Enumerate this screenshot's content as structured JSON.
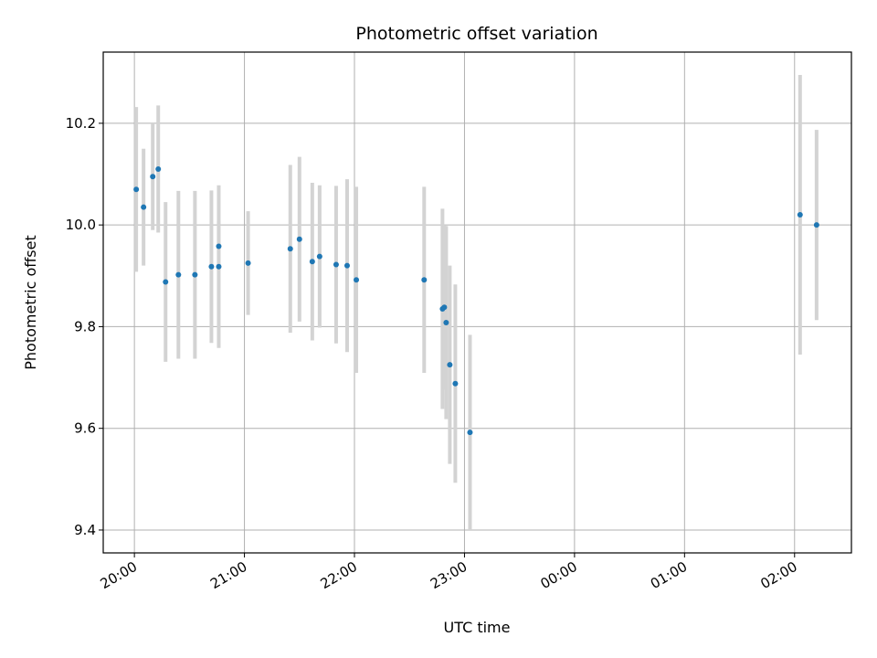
{
  "chart_data": {
    "type": "scatter",
    "title": "Photometric offset variation",
    "xlabel": "UTC time",
    "ylabel": "Photometric offset",
    "x_is_time": true,
    "x_tick_labels": [
      "20:00",
      "21:00",
      "22:00",
      "23:00",
      "00:00",
      "01:00",
      "02:00"
    ],
    "x_tick_times": [
      "20:00",
      "21:00",
      "22:00",
      "23:00",
      "24:00",
      "25:00",
      "26:00"
    ],
    "xlim": [
      "19:43",
      "26:31"
    ],
    "y_ticks": [
      9.4,
      9.6,
      9.8,
      10.0,
      10.2
    ],
    "y_tick_labels": [
      "9.4",
      "9.6",
      "9.8",
      "10.0",
      "10.2"
    ],
    "ylim": [
      9.355,
      10.34
    ],
    "grid": true,
    "colors": {
      "point": "#1f77b4",
      "errorbar": "#d3d3d3",
      "grid": "#b0b0b0"
    },
    "points": [
      {
        "time": "20:01",
        "y": 10.07,
        "err": 0.162
      },
      {
        "time": "20:05",
        "y": 10.035,
        "err": 0.115
      },
      {
        "time": "20:10",
        "y": 10.095,
        "err": 0.105
      },
      {
        "time": "20:13",
        "y": 10.11,
        "err": 0.125
      },
      {
        "time": "20:17",
        "y": 9.888,
        "err": 0.157
      },
      {
        "time": "20:24",
        "y": 9.902,
        "err": 0.165
      },
      {
        "time": "20:33",
        "y": 9.902,
        "err": 0.165
      },
      {
        "time": "20:42",
        "y": 9.918,
        "err": 0.15
      },
      {
        "time": "20:46",
        "y": 9.958,
        "err": 0.05
      },
      {
        "time": "20:46",
        "y": 9.918,
        "err": 0.16
      },
      {
        "time": "21:02",
        "y": 9.925,
        "err": 0.102
      },
      {
        "time": "21:25",
        "y": 9.953,
        "err": 0.165
      },
      {
        "time": "21:30",
        "y": 9.972,
        "err": 0.162
      },
      {
        "time": "21:37",
        "y": 9.928,
        "err": 0.155
      },
      {
        "time": "21:41",
        "y": 9.938,
        "err": 0.14
      },
      {
        "time": "21:50",
        "y": 9.922,
        "err": 0.155
      },
      {
        "time": "21:56",
        "y": 9.92,
        "err": 0.17
      },
      {
        "time": "22:01",
        "y": 9.892,
        "err": 0.183
      },
      {
        "time": "22:38",
        "y": 9.892,
        "err": 0.183
      },
      {
        "time": "22:48",
        "y": 9.835,
        "err": 0.197
      },
      {
        "time": "22:49",
        "y": 9.838,
        "err": 0.162
      },
      {
        "time": "22:50",
        "y": 9.808,
        "err": 0.19
      },
      {
        "time": "22:52",
        "y": 9.725,
        "err": 0.195
      },
      {
        "time": "22:55",
        "y": 9.688,
        "err": 0.195
      },
      {
        "time": "23:03",
        "y": 9.592,
        "err": 0.192
      },
      {
        "time": "26:03",
        "y": 10.02,
        "err": 0.275
      },
      {
        "time": "26:12",
        "y": 10.0,
        "err": 0.187
      }
    ]
  }
}
